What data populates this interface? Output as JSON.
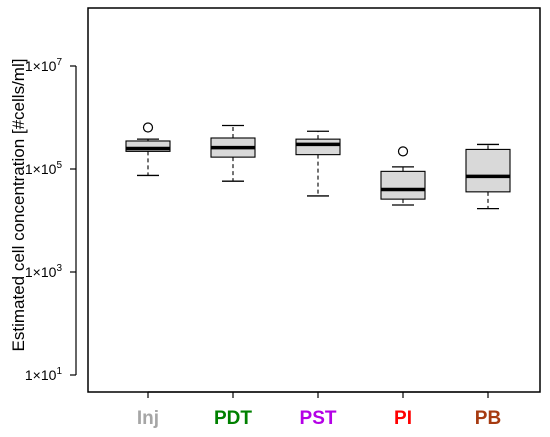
{
  "chart_data": {
    "type": "box",
    "ylabel": "Estimated cell concentration [#cells/ml]",
    "yscale": "log10",
    "ylim": [
      10,
      100000000
    ],
    "y_ticks": [
      {
        "value": 10,
        "label_base": "1×10",
        "label_exp": "1"
      },
      {
        "value": 1000,
        "label_base": "1×10",
        "label_exp": "3"
      },
      {
        "value": 100000,
        "label_base": "1×10",
        "label_exp": "5"
      },
      {
        "value": 10000000,
        "label_base": "1×10",
        "label_exp": "7"
      }
    ],
    "grid": false,
    "categories": [
      {
        "label": "Inj",
        "color": "#a6a6a6"
      },
      {
        "label": "PDT",
        "color": "#008000"
      },
      {
        "label": "PST",
        "color": "#b400e6"
      },
      {
        "label": "PI",
        "color": "#ff0000"
      },
      {
        "label": "PB",
        "color": "#a63a10"
      }
    ],
    "boxes": [
      {
        "category": "Inj",
        "whisker_low": 75000,
        "q1": 220000,
        "median": 250000,
        "q3": 350000,
        "whisker_high": 380000,
        "outliers": [
          640000
        ]
      },
      {
        "category": "PDT",
        "whisker_low": 58000,
        "q1": 170000,
        "median": 260000,
        "q3": 400000,
        "whisker_high": 700000,
        "outliers": []
      },
      {
        "category": "PST",
        "whisker_low": 30000,
        "q1": 190000,
        "median": 300000,
        "q3": 380000,
        "whisker_high": 540000,
        "outliers": []
      },
      {
        "category": "PI",
        "whisker_low": 20000,
        "q1": 26000,
        "median": 40000,
        "q3": 90000,
        "whisker_high": 110000,
        "outliers": [
          220000
        ]
      },
      {
        "category": "PB",
        "whisker_low": 17000,
        "q1": 36000,
        "median": 72000,
        "q3": 240000,
        "whisker_high": 300000,
        "outliers": []
      }
    ],
    "box_fill": "#d9d9d9"
  }
}
